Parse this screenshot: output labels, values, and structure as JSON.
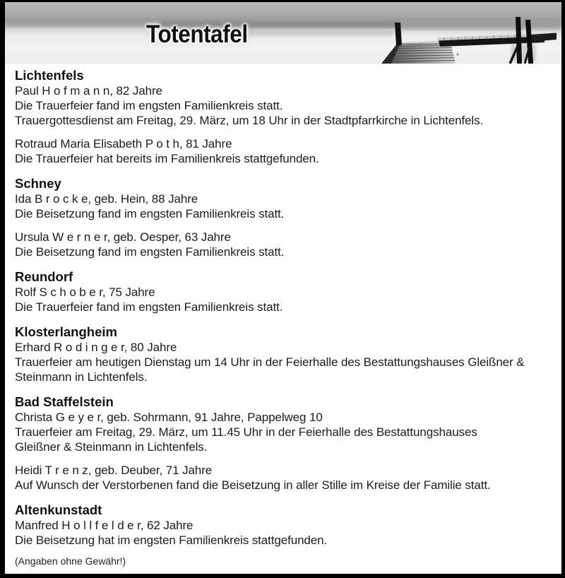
{
  "header": {
    "title": "Totentafel",
    "photo_alt": "lake-with-wooden-dock"
  },
  "colors": {
    "page_border": "#000000",
    "title_text": "#101010",
    "body_text": "#1c1c1c",
    "photo_sky_gray": "#a6a6a6",
    "photo_water_gray": "#f0f0f0",
    "dock_dark": "#141414"
  },
  "sections": [
    {
      "town": "Lichtenfels",
      "entries": [
        {
          "lines": [
            "Paul H o f m a n n, 82 Jahre",
            "Die Trauerfeier fand im engsten Familienkreis statt.",
            "Trauergottesdienst am Freitag, 29. März, um 18 Uhr in der Stadtpfarrkirche in Lichtenfels."
          ]
        },
        {
          "lines": [
            "Rotraud Maria Elisabeth P o t h, 81 Jahre",
            "Die Trauerfeier hat bereits im Familienkreis stattgefunden."
          ]
        }
      ]
    },
    {
      "town": "Schney",
      "entries": [
        {
          "lines": [
            "Ida B r o c k e, geb. Hein, 88 Jahre",
            "Die Beisetzung fand im engsten Familienkreis statt."
          ]
        },
        {
          "lines": [
            "Ursula W e r n e r, geb. Oesper, 63 Jahre",
            "Die Beisetzung fand im engsten Familienkreis statt."
          ]
        }
      ]
    },
    {
      "town": "Reundorf",
      "entries": [
        {
          "lines": [
            "Rolf S c h o b e r, 75 Jahre",
            "Die Trauerfeier fand im engsten Familienkreis statt."
          ]
        }
      ]
    },
    {
      "town": "Klosterlangheim",
      "entries": [
        {
          "lines": [
            "Erhard R o d i n g e r, 80 Jahre",
            "Trauerfeier am heutigen Dienstag um 14 Uhr in der Feierhalle des Bestattungshauses Gleißner &",
            "Steinmann in Lichtenfels."
          ]
        }
      ]
    },
    {
      "town": "Bad Staffelstein",
      "entries": [
        {
          "lines": [
            "Christa G e y e r, geb. Sohrmann, 91 Jahre, Pappelweg 10",
            "Trauerfeier am Freitag, 29. März, um 11.45 Uhr in der Feierhalle des Bestattungshauses",
            "Gleißner & Steinmann in Lichtenfels."
          ]
        },
        {
          "lines": [
            "Heidi T r e n z, geb. Deuber, 71 Jahre",
            "Auf Wunsch der Verstorbenen fand die Beisetzung in aller Stille im Kreise der Familie statt."
          ]
        }
      ]
    },
    {
      "town": "Altenkunstadt",
      "entries": [
        {
          "lines": [
            "Manfred H o l l f e l d e r, 62 Jahre",
            "Die Beisetzung hat im engsten Familienkreis stattgefunden."
          ]
        }
      ]
    }
  ],
  "footer": {
    "disclaimer": "(Angaben ohne Gewähr!)"
  }
}
